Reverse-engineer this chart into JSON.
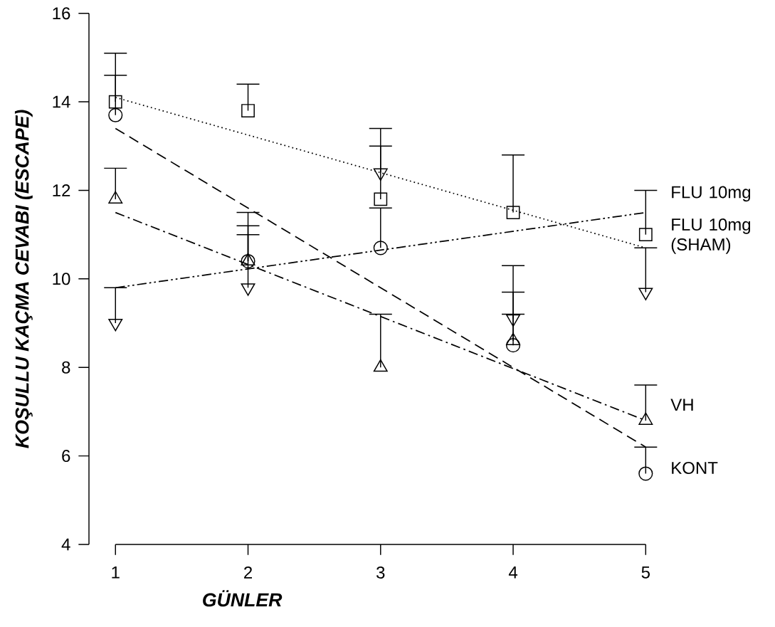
{
  "chart_data": {
    "type": "scatter",
    "xlabel": "GÜNLER",
    "ylabel": "KOŞULLU KAÇMA CEVABI (ESCAPE)",
    "xlim": [
      0.8,
      5
    ],
    "ylim": [
      4,
      16
    ],
    "xticks": [
      1,
      2,
      3,
      4,
      5
    ],
    "yticks": [
      4,
      6,
      8,
      10,
      12,
      14,
      16
    ],
    "series": [
      {
        "name": "FLU 10mg",
        "type": "scatter",
        "marker": "square",
        "color": "#000000",
        "x": [
          1,
          2,
          3,
          4,
          5
        ],
        "values": [
          14.0,
          13.8,
          11.8,
          11.5,
          11.0
        ],
        "errors": [
          [
            14.0,
            15.1
          ],
          [
            13.8,
            14.4
          ],
          [
            11.8,
            13.0
          ],
          [
            11.5,
            12.8
          ],
          [
            11.0,
            12.0
          ]
        ]
      },
      {
        "name": "FLU 10mg (SHAM)",
        "type": "scatter",
        "marker": "triangle_down",
        "color": "#000000",
        "x": [
          1,
          2,
          3,
          4,
          5
        ],
        "values": [
          9.0,
          9.8,
          12.4,
          9.1,
          9.7
        ],
        "errors": [
          [
            9.0,
            9.8
          ],
          [
            9.8,
            11.5
          ],
          [
            12.4,
            13.4
          ],
          [
            9.1,
            10.3
          ],
          [
            9.7,
            10.7
          ]
        ]
      },
      {
        "name": "VH",
        "type": "scatter",
        "marker": "triangle",
        "color": "#000000",
        "x": [
          1,
          2,
          3,
          4,
          5
        ],
        "values": [
          11.8,
          10.4,
          8.0,
          8.6,
          6.8
        ],
        "errors": [
          [
            11.8,
            12.5
          ],
          [
            10.4,
            11.2
          ],
          [
            8.0,
            9.2
          ],
          [
            8.6,
            9.2
          ],
          [
            6.8,
            7.6
          ]
        ]
      },
      {
        "name": "KONT",
        "type": "scatter",
        "marker": "circle",
        "color": "#000000",
        "x": [
          1,
          2,
          3,
          4,
          5
        ],
        "values": [
          13.7,
          10.4,
          10.7,
          8.5,
          5.6
        ],
        "errors": [
          [
            13.7,
            14.6
          ],
          [
            10.4,
            11.0
          ],
          [
            10.7,
            11.6
          ],
          [
            8.5,
            9.7
          ],
          [
            5.6,
            6.2
          ]
        ]
      },
      {
        "type": "line",
        "line_style": "dotted",
        "color": "#000000",
        "x": [
          1,
          5
        ],
        "values": [
          14.1,
          10.7
        ]
      },
      {
        "type": "line",
        "line_style": "dashdotdot",
        "color": "#000000",
        "x": [
          1,
          5
        ],
        "values": [
          9.8,
          11.5
        ]
      },
      {
        "type": "line",
        "line_style": "dashdot",
        "color": "#000000",
        "x": [
          1,
          5
        ],
        "values": [
          11.5,
          6.8
        ]
      },
      {
        "type": "line",
        "line_style": "dashed",
        "color": "#000000",
        "x": [
          1,
          5
        ],
        "values": [
          13.4,
          6.2
        ]
      }
    ]
  }
}
